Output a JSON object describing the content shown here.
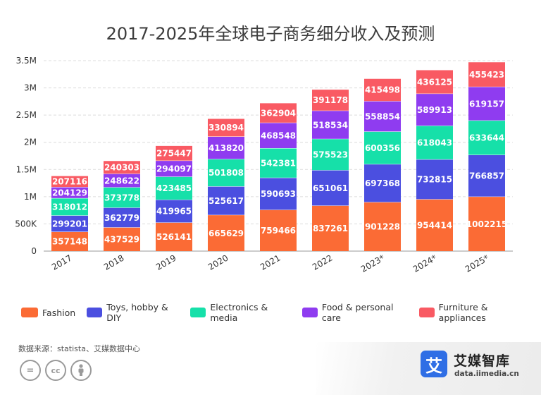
{
  "title": "2017-2025年全球电子商务细分收入及预测",
  "chart_data": {
    "type": "bar",
    "stacked": true,
    "categories": [
      "2017",
      "2018",
      "2019",
      "2020",
      "2021",
      "2022",
      "2023*",
      "2024*",
      "2025*"
    ],
    "series": [
      {
        "name": "Fashion",
        "color": "#fb6b35",
        "values": [
          357148,
          437529,
          526141,
          665629,
          759466,
          837261,
          901228,
          954414,
          1002215
        ]
      },
      {
        "name": "Toys, hobby & DIY",
        "color": "#4b4fe0",
        "values": [
          299201,
          362779,
          419965,
          525617,
          590693,
          651061,
          697368,
          732815,
          766857
        ]
      },
      {
        "name": "Electronics & media",
        "color": "#16e0a9",
        "values": [
          318012,
          373778,
          423485,
          501808,
          542381,
          575523,
          600356,
          618043,
          633644
        ]
      },
      {
        "name": "Food & personal care",
        "color": "#8f3cf0",
        "values": [
          204129,
          248622,
          294097,
          413820,
          468548,
          518534,
          558854,
          589913,
          619157
        ]
      },
      {
        "name": "Furniture & appliances",
        "color": "#f95a63",
        "values": [
          207116,
          240303,
          275447,
          330894,
          362904,
          391178,
          415498,
          436125,
          455423
        ]
      }
    ],
    "y_ticks": [
      "0",
      "500K",
      "1M",
      "1.5M",
      "2M",
      "2.5M",
      "3M",
      "3.5M"
    ],
    "ylim": [
      0,
      3500000
    ],
    "grid": true,
    "legend_position": "bottom"
  },
  "source": "数据来源：statista、艾媒数据中心",
  "cc_icons": [
    "=",
    "cc",
    "person"
  ],
  "brand": {
    "logo_char": "艾",
    "name": "艾媒智库",
    "url": "data.iimedia.cn",
    "accent": "#2f6ee5"
  }
}
